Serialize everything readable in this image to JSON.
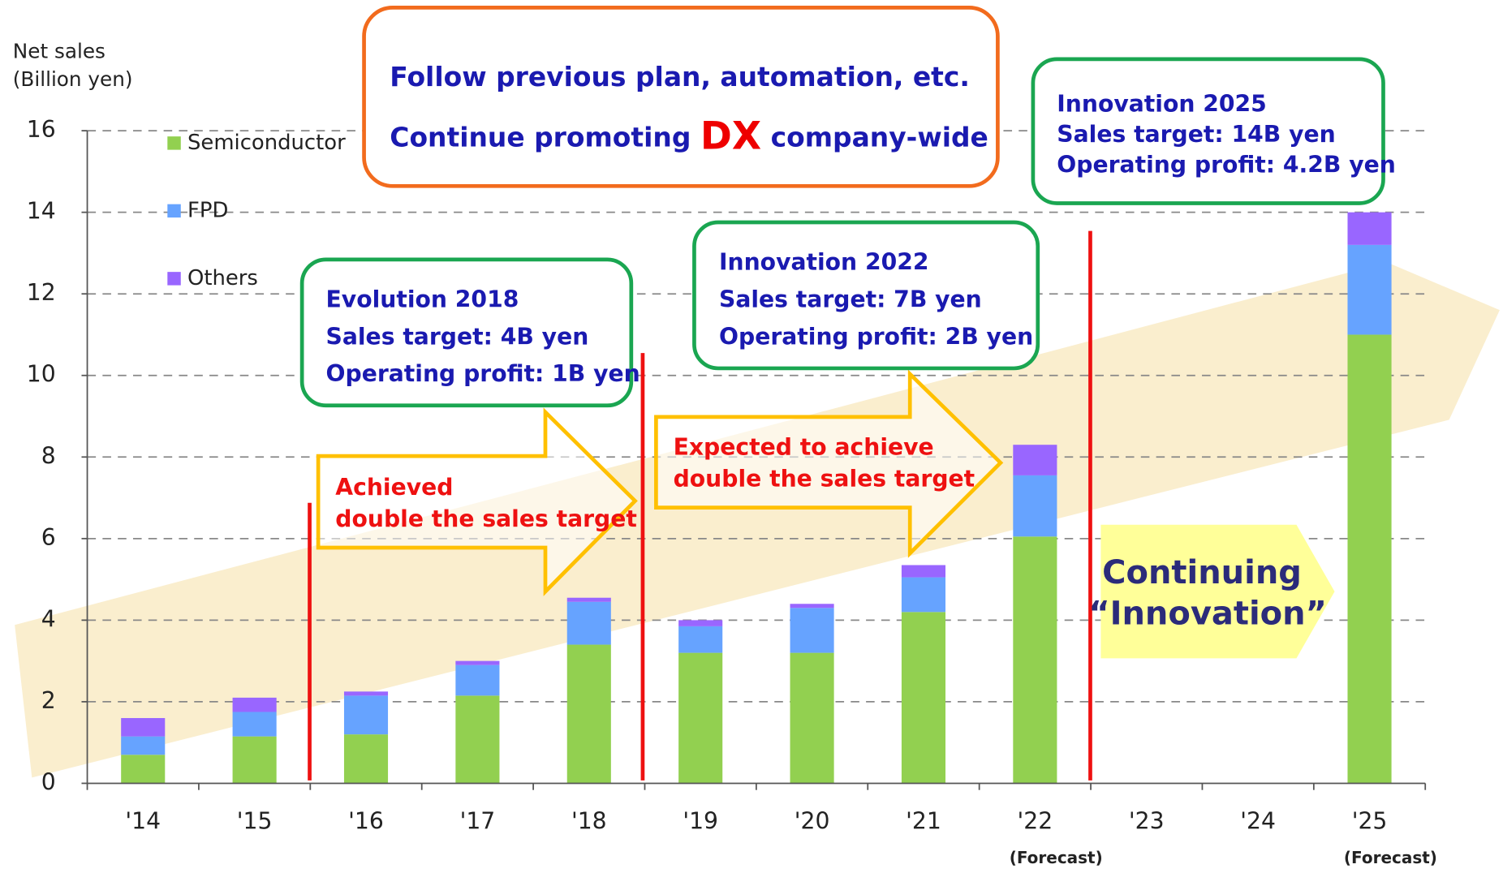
{
  "chart_data": {
    "type": "stacked_bar",
    "y_label_lines": [
      "Net sales",
      "(Billion yen)"
    ],
    "categories": [
      "'14",
      "'15",
      "'16",
      "'17",
      "'18",
      "'19",
      "'20",
      "'21",
      "'22",
      "'23",
      "'24",
      "'25"
    ],
    "sublabels": [
      null,
      null,
      null,
      null,
      null,
      null,
      null,
      null,
      "(Forecast)",
      null,
      null,
      "(Forecast)"
    ],
    "series": [
      {
        "name": "Semiconductor",
        "color": "#92d050",
        "values": [
          0.7,
          1.15,
          1.2,
          2.15,
          3.4,
          3.2,
          3.2,
          4.2,
          6.05,
          null,
          null,
          11
        ]
      },
      {
        "name": "FPD",
        "color": "#66a3ff",
        "values": [
          0.45,
          0.6,
          0.95,
          0.75,
          1.05,
          0.65,
          1.1,
          0.85,
          1.5,
          null,
          null,
          2.2
        ]
      },
      {
        "name": "Others",
        "color": "#9966ff",
        "values": [
          0.45,
          0.35,
          0.1,
          0.1,
          0.1,
          0.15,
          0.1,
          0.3,
          0.75,
          null,
          null,
          0.8
        ]
      }
    ],
    "ylim": [
      0,
      16
    ],
    "yticks": [
      0,
      2,
      4,
      6,
      8,
      10,
      12,
      14,
      16
    ],
    "grid": true,
    "legend": "top-left",
    "plan_box": {
      "line1": "Follow previous plan, automation, etc.",
      "line2_before": "Continue promoting",
      "line2_highlight": "DX",
      "line2_after": "company-wide"
    },
    "goal_boxes": [
      {
        "lines": [
          "Evolution 2018",
          "Sales target: 4B yen",
          "Operating profit: 1B yen"
        ]
      },
      {
        "lines": [
          "Innovation 2022",
          "Sales target: 7B yen",
          "Operating profit: 2B yen"
        ]
      },
      {
        "lines": [
          "Innovation 2025",
          "Sales target: 14B yen",
          "Operating profit: 4.2B yen"
        ]
      }
    ],
    "arrow_notes": [
      {
        "lines": [
          "Achieved",
          "double the sales target"
        ]
      },
      {
        "lines": [
          "Expected to achieve",
          "double the sales target"
        ]
      }
    ],
    "continuing": [
      "Continuing",
      "“Innovation”"
    ]
  }
}
